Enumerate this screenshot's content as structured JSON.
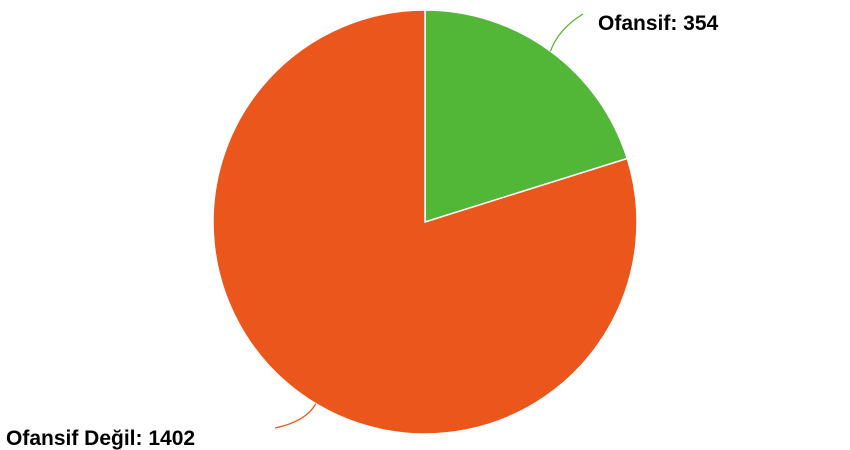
{
  "chart_data": {
    "type": "pie",
    "slices": [
      {
        "label": "Ofansif",
        "value": 354,
        "display": "Ofansif: 354",
        "color": "#52b636"
      },
      {
        "label": "Ofansif Değil",
        "value": 1402,
        "display": "Ofansif Değil: 1402",
        "color": "#ea561b"
      }
    ],
    "start_angle_deg": 0,
    "direction": "clockwise",
    "legend": "none",
    "labels": "outside-with-leader-lines"
  }
}
